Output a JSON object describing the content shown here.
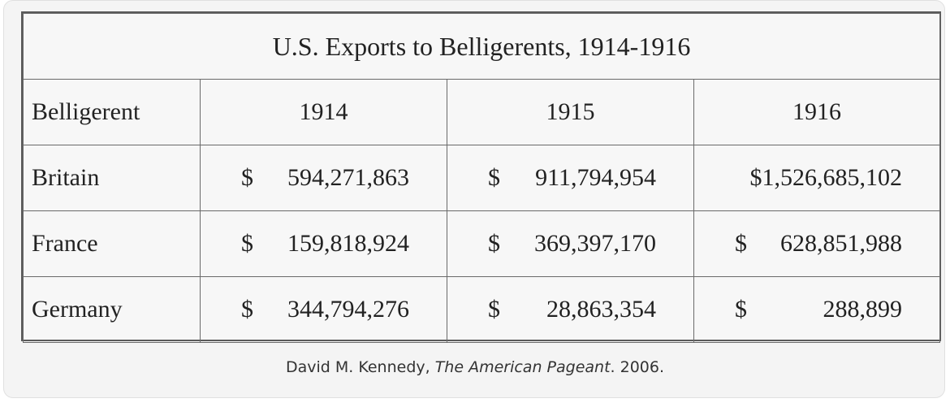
{
  "table": {
    "title": "U.S. Exports to Belligerents, 1914-1916",
    "header": {
      "label": "Belligerent",
      "years": [
        "1914",
        "1915",
        "1916"
      ]
    },
    "rows": [
      {
        "name": "Britain",
        "cells": [
          {
            "sign": "$",
            "amount": "594,271,863"
          },
          {
            "sign": "$",
            "amount": "911,794,954"
          },
          {
            "sign": "",
            "amount": "$1,526,685,102"
          }
        ]
      },
      {
        "name": "France",
        "cells": [
          {
            "sign": "$",
            "amount": "159,818,924"
          },
          {
            "sign": "$",
            "amount": "369,397,170"
          },
          {
            "sign": "$",
            "amount": "628,851,988"
          }
        ]
      },
      {
        "name": "Germany",
        "cells": [
          {
            "sign": "$",
            "amount": "344,794,276"
          },
          {
            "sign": "$",
            "amount": "28,863,354"
          },
          {
            "sign": "$",
            "amount": "288,899"
          }
        ]
      }
    ]
  },
  "caption": {
    "author": "David M. Kennedy, ",
    "work": "The American Pageant",
    "year": ". 2006."
  }
}
